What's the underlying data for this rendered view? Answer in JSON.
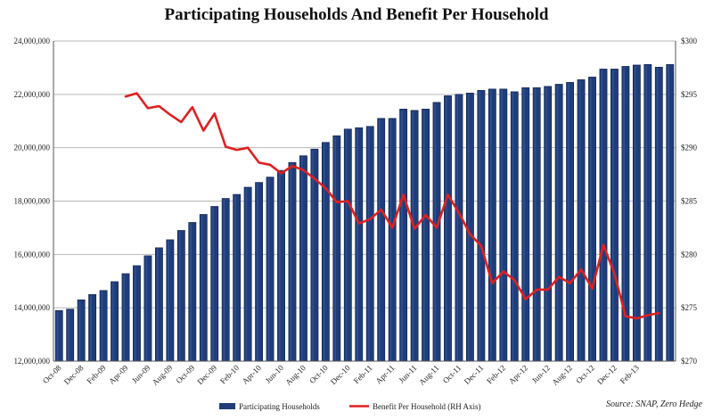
{
  "chart_data": {
    "type": "bar",
    "title": "Participating Households And Benefit Per Household",
    "source": "Source: SNAP, Zero Hedge",
    "left_axis": {
      "min": 12000000,
      "max": 24000000,
      "ticks": [
        12000000,
        14000000,
        16000000,
        18000000,
        20000000,
        22000000,
        24000000
      ],
      "tick_labels": [
        "12,000,000",
        "14,000,000",
        "16,000,000",
        "18,000,000",
        "20,000,000",
        "22,000,000",
        "24,000,000"
      ]
    },
    "right_axis": {
      "min": 270,
      "max": 300,
      "ticks": [
        270,
        275,
        280,
        285,
        290,
        295,
        300
      ],
      "tick_labels": [
        "$270",
        "$275",
        "$280",
        "$285",
        "$290",
        "$295",
        "$300"
      ]
    },
    "x_tick_labels": [
      "Oct-08",
      "Dec-08",
      "Feb-09",
      "Apr-09",
      "Jun-09",
      "Aug-09",
      "Oct-09",
      "Dec-09",
      "Feb-10",
      "Apr-10",
      "Jun-10",
      "Aug-10",
      "Oct-10",
      "Dec-10",
      "Feb-11",
      "Apr-11",
      "Jun-11",
      "Aug-11",
      "Oct-11",
      "Dec-11",
      "Feb-12",
      "Apr-12",
      "Jun-12",
      "Aug-12",
      "Oct-12",
      "Dec-12",
      "Feb-13"
    ],
    "series": [
      {
        "name": "Participating Households",
        "type": "bar",
        "axis": "left",
        "color": "#1f3d7a",
        "values": [
          13900000,
          13950000,
          14300000,
          14500000,
          14650000,
          14980000,
          15280000,
          15580000,
          15950000,
          16250000,
          16550000,
          16900000,
          17200000,
          17500000,
          17800000,
          18100000,
          18250000,
          18520000,
          18700000,
          18900000,
          19150000,
          19450000,
          19700000,
          19950000,
          20200000,
          20450000,
          20700000,
          20750000,
          20800000,
          21100000,
          21100000,
          21450000,
          21400000,
          21450000,
          21700000,
          21950000,
          22000000,
          22050000,
          22150000,
          22200000,
          22200000,
          22100000,
          22250000,
          22250000,
          22300000,
          22380000,
          22450000,
          22550000,
          22650000,
          22950000,
          22950000,
          23050000,
          23100000,
          23120000,
          23020000,
          23120000
        ]
      },
      {
        "name": "Benefit Per Household (RH Axis)",
        "type": "line",
        "axis": "right",
        "color": "#e02020",
        "start_index": 6,
        "values": [
          294.8,
          295.1,
          293.7,
          293.9,
          293.1,
          292.4,
          293.8,
          291.6,
          293.2,
          290.1,
          289.8,
          290.0,
          288.6,
          288.4,
          287.6,
          288.3,
          287.9,
          287.1,
          286.2,
          284.9,
          285.0,
          282.9,
          283.3,
          284.2,
          282.5,
          285.6,
          282.4,
          283.7,
          282.5,
          285.6,
          283.9,
          281.9,
          280.8,
          277.3,
          278.4,
          277.6,
          275.8,
          276.7,
          276.7,
          277.9,
          277.3,
          278.6,
          276.8,
          280.9,
          278.2,
          274.2,
          274.0,
          274.3,
          274.5
        ]
      }
    ],
    "legend_position": "bottom",
    "grid": "horizontal"
  }
}
